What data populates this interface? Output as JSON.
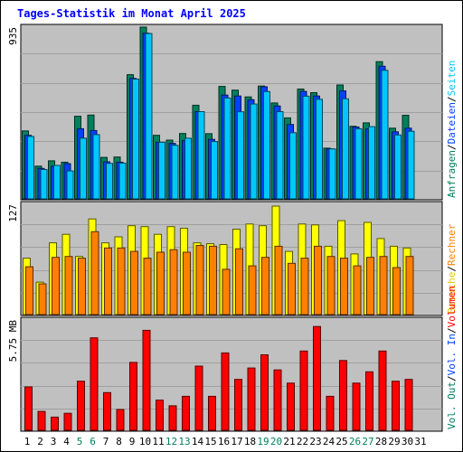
{
  "chart_data": [
    {
      "type": "bar",
      "title": "Tages-Statistik im Monat April 2025",
      "y_max_label": "935",
      "ylim": [
        0,
        935
      ],
      "side_labels": [
        {
          "text": "Anfragen",
          "color": "#00805c"
        },
        {
          "text": "Dateien",
          "color": "#0042ff"
        },
        {
          "text": "Seiten",
          "color": "#00c8ff"
        }
      ],
      "categories": [
        "1",
        "2",
        "3",
        "4",
        "5",
        "6",
        "7",
        "8",
        "9",
        "10",
        "11",
        "12",
        "13",
        "14",
        "15",
        "16",
        "17",
        "18",
        "19",
        "20",
        "21",
        "22",
        "23",
        "24",
        "25",
        "26",
        "27",
        "28",
        "29",
        "30",
        "31"
      ],
      "series": [
        {
          "name": "Anfragen",
          "color": "#00805c",
          "values": [
            370,
            178,
            207,
            200,
            450,
            456,
            226,
            228,
            676,
            935,
            346,
            320,
            356,
            510,
            355,
            612,
            592,
            555,
            614,
            522,
            441,
            598,
            578,
            276,
            620,
            395,
            414,
            747,
            385,
            455,
            0
          ]
        },
        {
          "name": "Dateien",
          "color": "#0042ff",
          "values": [
            346,
            166,
            178,
            192,
            382,
            372,
            202,
            200,
            656,
            902,
            308,
            302,
            318,
            475,
            324,
            565,
            560,
            540,
            610,
            506,
            405,
            585,
            560,
            272,
            588,
            391,
            381,
            722,
            365,
            385,
            0
          ]
        },
        {
          "name": "Seiten",
          "color": "#00c8ff",
          "values": [
            340,
            160,
            182,
            152,
            330,
            350,
            193,
            195,
            652,
            900,
            308,
            292,
            330,
            475,
            312,
            549,
            474,
            516,
            584,
            475,
            360,
            559,
            542,
            272,
            545,
            382,
            393,
            700,
            348,
            368,
            0
          ]
        }
      ]
    },
    {
      "type": "bar",
      "y_max_label": "127",
      "ylim": [
        0,
        127
      ],
      "side_labels": [
        {
          "text": "Besuche",
          "color": "#e6c800"
        },
        {
          "text": "Rechner",
          "color": "#ff8000"
        }
      ],
      "categories": [
        "1",
        "2",
        "3",
        "4",
        "5",
        "6",
        "7",
        "8",
        "9",
        "10",
        "11",
        "12",
        "13",
        "14",
        "15",
        "16",
        "17",
        "18",
        "19",
        "20",
        "21",
        "22",
        "23",
        "24",
        "25",
        "26",
        "27",
        "28",
        "29",
        "30",
        "31"
      ],
      "series": [
        {
          "name": "Besuche",
          "color": "#ffff00",
          "values": [
            66,
            38,
            84,
            94,
            68,
            112,
            84,
            91,
            104,
            103,
            94,
            103,
            101,
            84,
            83,
            82,
            100,
            106,
            104,
            127,
            74,
            106,
            105,
            80,
            110,
            71,
            108,
            89,
            80,
            78,
            0
          ]
        },
        {
          "name": "Rechner",
          "color": "#ff8000",
          "values": [
            56,
            36,
            67,
            68,
            66,
            97,
            78,
            78,
            74,
            66,
            73,
            76,
            73,
            81,
            80,
            53,
            77,
            57,
            67,
            80,
            60,
            66,
            80,
            68,
            66,
            57,
            67,
            68,
            55,
            68,
            0
          ]
        }
      ]
    },
    {
      "type": "bar",
      "y_max_label": "5.75 MB",
      "ylim": [
        0,
        5.75
      ],
      "side_labels": [
        {
          "text": "Vol. Out",
          "color": "#00805c"
        },
        {
          "text": "Vol. In",
          "color": "#0042ff"
        },
        {
          "text": "Volumen",
          "color": "#ff0000"
        }
      ],
      "categories": [
        "1",
        "2",
        "3",
        "4",
        "5",
        "6",
        "7",
        "8",
        "9",
        "10",
        "11",
        "12",
        "13",
        "14",
        "15",
        "16",
        "17",
        "18",
        "19",
        "20",
        "21",
        "22",
        "23",
        "24",
        "25",
        "26",
        "27",
        "28",
        "29",
        "30",
        "31"
      ],
      "series": [
        {
          "name": "Volumen",
          "color": "#ff0000",
          "values": [
            2.3,
            1.0,
            0.7,
            0.9,
            2.6,
            4.9,
            2.0,
            1.1,
            3.6,
            5.3,
            1.6,
            1.3,
            1.8,
            3.4,
            1.8,
            4.1,
            2.7,
            3.3,
            4.0,
            3.2,
            2.5,
            4.2,
            5.5,
            1.8,
            3.7,
            2.5,
            3.1,
            4.2,
            2.6,
            2.7,
            0
          ]
        }
      ]
    }
  ],
  "x_labels": [
    {
      "text": "1",
      "color": "#000000"
    },
    {
      "text": "2",
      "color": "#000000"
    },
    {
      "text": "3",
      "color": "#000000"
    },
    {
      "text": "4",
      "color": "#000000"
    },
    {
      "text": "5",
      "color": "#00805c"
    },
    {
      "text": "6",
      "color": "#00805c"
    },
    {
      "text": "7",
      "color": "#000000"
    },
    {
      "text": "8",
      "color": "#000000"
    },
    {
      "text": "9",
      "color": "#000000"
    },
    {
      "text": "10",
      "color": "#000000"
    },
    {
      "text": "11",
      "color": "#000000"
    },
    {
      "text": "12",
      "color": "#00805c"
    },
    {
      "text": "13",
      "color": "#00805c"
    },
    {
      "text": "14",
      "color": "#000000"
    },
    {
      "text": "15",
      "color": "#000000"
    },
    {
      "text": "16",
      "color": "#000000"
    },
    {
      "text": "17",
      "color": "#000000"
    },
    {
      "text": "18",
      "color": "#000000"
    },
    {
      "text": "19",
      "color": "#00805c"
    },
    {
      "text": "20",
      "color": "#00805c"
    },
    {
      "text": "21",
      "color": "#000000"
    },
    {
      "text": "22",
      "color": "#000000"
    },
    {
      "text": "23",
      "color": "#000000"
    },
    {
      "text": "24",
      "color": "#000000"
    },
    {
      "text": "25",
      "color": "#000000"
    },
    {
      "text": "26",
      "color": "#00805c"
    },
    {
      "text": "27",
      "color": "#00805c"
    },
    {
      "text": "28",
      "color": "#000000"
    },
    {
      "text": "29",
      "color": "#000000"
    },
    {
      "text": "30",
      "color": "#000000"
    },
    {
      "text": "31",
      "color": "#000000"
    }
  ],
  "colors": {
    "title": "#0000ff",
    "panel_bg": "#c0c0c0",
    "frame_bg": "#ffffff",
    "grid": "#a0a0a0",
    "separator": "#000000"
  }
}
